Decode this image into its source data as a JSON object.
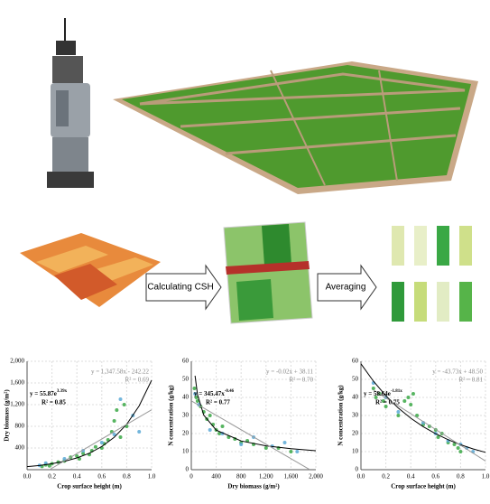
{
  "labels": {
    "csh": "Calculating CSH",
    "averaging": "Averaging"
  },
  "chart_data": [
    {
      "type": "scatter",
      "x_label": "Crop surface height (m)",
      "y_label": "Dry biomass (g/m²)",
      "xlim": [
        0,
        1
      ],
      "xticks": [
        {
          "value": 0,
          "label": "0.0"
        },
        0.2,
        0.4,
        0.6,
        0.8,
        {
          "value": 1,
          "label": "1.0"
        }
      ],
      "ylim": [
        0,
        2000
      ],
      "yticks": [
        400,
        800,
        {
          "value": 1200,
          "label": "1,200"
        },
        {
          "value": 1600,
          "label": "1,600"
        },
        {
          "value": 2000,
          "label": "2,000"
        }
      ],
      "grid": true,
      "linear_equation": [
        "y = 1,347.58x - 242.22",
        "R² = 0.69"
      ],
      "fit_equation": {
        "base": "y = 55.87e",
        "exp": "3.39x"
      },
      "fit_r2": "R² = 0.85",
      "series": [
        {
          "color": "#3aa845",
          "x": [
            0.12,
            0.15,
            0.18,
            0.2,
            0.25,
            0.3,
            0.35,
            0.4,
            0.42,
            0.45,
            0.5,
            0.52,
            0.55,
            0.6,
            0.62,
            0.65,
            0.68,
            0.7,
            0.72,
            0.75,
            0.78,
            0.8
          ],
          "values": [
            60,
            90,
            70,
            110,
            140,
            160,
            230,
            250,
            200,
            300,
            280,
            350,
            420,
            400,
            480,
            550,
            700,
            900,
            1100,
            600,
            1200,
            800
          ]
        },
        {
          "color": "#5aa9d6",
          "x": [
            0.1,
            0.15,
            0.3,
            0.45,
            0.6,
            0.7,
            0.75,
            0.85,
            0.9
          ],
          "values": [
            80,
            120,
            200,
            350,
            500,
            650,
            1300,
            1000,
            700
          ]
        }
      ],
      "trend_lines": [
        {
          "color": "#000000",
          "x": [
            0,
            0.1,
            0.2,
            0.3,
            0.4,
            0.5,
            0.6,
            0.7,
            0.8,
            0.9,
            1
          ],
          "values": [
            56,
            78,
            110,
            154,
            217,
            303,
            427,
            598,
            838,
            1177,
            1650
          ]
        },
        {
          "color": "#999999",
          "x": [
            0.18,
            1
          ],
          "values": [
            0,
            1105
          ]
        }
      ]
    },
    {
      "type": "scatter",
      "x_label": "Dry biomass (g/m²)",
      "y_label": "N concentration (g/kg)",
      "xlim": [
        0,
        2000
      ],
      "xticks": [
        0,
        400,
        800,
        {
          "value": 1200,
          "label": "1,200"
        },
        {
          "value": 1600,
          "label": "1,600"
        },
        {
          "value": 2000,
          "label": "2,000"
        }
      ],
      "ylim": [
        0,
        60
      ],
      "yticks": [
        0,
        10,
        20,
        30,
        40,
        50,
        60
      ],
      "grid": true,
      "linear_equation": [
        "y = -0.02x + 38.11",
        "R² = 0.70"
      ],
      "fit_equation": {
        "base": "y = 345.47x",
        "exp": "-0.46"
      },
      "fit_r2": "R² = 0.77",
      "series": [
        {
          "color": "#3aa845",
          "x": [
            50,
            80,
            100,
            150,
            200,
            250,
            300,
            350,
            400,
            450,
            500,
            600,
            700,
            800,
            900,
            1000,
            1200,
            1400,
            1600
          ],
          "values": [
            45,
            40,
            38,
            35,
            32,
            28,
            30,
            25,
            22,
            20,
            24,
            18,
            17,
            15,
            16,
            14,
            12,
            12,
            10
          ]
        },
        {
          "color": "#5aa9d6",
          "x": [
            60,
            120,
            300,
            500,
            800,
            1000,
            1300,
            1500,
            1700
          ],
          "values": [
            42,
            36,
            22,
            20,
            14,
            18,
            13,
            15,
            10
          ]
        }
      ],
      "trend_lines": [
        {
          "color": "#000000",
          "x": [
            60,
            100,
            200,
            400,
            800,
            1200,
            1600,
            2000
          ],
          "values": [
            52,
            41.5,
            30.2,
            21.9,
            15.9,
            13.2,
            11.6,
            10.5
          ]
        },
        {
          "color": "#999999",
          "x": [
            0,
            1900
          ],
          "values": [
            38.11,
            0.11
          ]
        }
      ]
    },
    {
      "type": "scatter",
      "x_label": "Crop surface height (m)",
      "y_label": "N concentration (g/kg)",
      "xlim": [
        0,
        1
      ],
      "xticks": [
        {
          "value": 0,
          "label": "0.0"
        },
        0.2,
        0.4,
        0.6,
        0.8,
        {
          "value": 1,
          "label": "1.0"
        }
      ],
      "ylim": [
        0,
        60
      ],
      "yticks": [
        0,
        10,
        20,
        30,
        40,
        50,
        60
      ],
      "grid": true,
      "linear_equation": [
        "y = -43.73x + 48.50",
        "R² = 0.81"
      ],
      "fit_equation": {
        "base": "y = 58.64e",
        "exp": "-1.81x"
      },
      "fit_r2": "R² = 0.75",
      "series": [
        {
          "color": "#3aa845",
          "x": [
            0.1,
            0.12,
            0.15,
            0.18,
            0.2,
            0.3,
            0.35,
            0.38,
            0.4,
            0.42,
            0.45,
            0.5,
            0.55,
            0.6,
            0.62,
            0.65,
            0.7,
            0.75,
            0.78,
            0.8
          ],
          "values": [
            45,
            40,
            42,
            38,
            35,
            30,
            38,
            40,
            36,
            42,
            30,
            25,
            24,
            22,
            18,
            20,
            15,
            14,
            12,
            10
          ]
        },
        {
          "color": "#5aa9d6",
          "x": [
            0.1,
            0.2,
            0.3,
            0.5,
            0.6,
            0.7,
            0.8,
            0.85,
            0.9
          ],
          "values": [
            48,
            40,
            32,
            26,
            20,
            16,
            14,
            12,
            10
          ]
        }
      ],
      "trend_lines": [
        {
          "color": "#000000",
          "x": [
            0,
            0.1,
            0.2,
            0.3,
            0.4,
            0.5,
            0.6,
            0.7,
            0.8,
            0.9,
            1
          ],
          "values": [
            58.6,
            49,
            40.9,
            34.1,
            28.5,
            23.8,
            19.9,
            16.6,
            13.8,
            11.5,
            9.6
          ]
        },
        {
          "color": "#999999",
          "x": [
            0.1,
            1
          ],
          "values": [
            44.1,
            4.8
          ]
        }
      ]
    }
  ]
}
